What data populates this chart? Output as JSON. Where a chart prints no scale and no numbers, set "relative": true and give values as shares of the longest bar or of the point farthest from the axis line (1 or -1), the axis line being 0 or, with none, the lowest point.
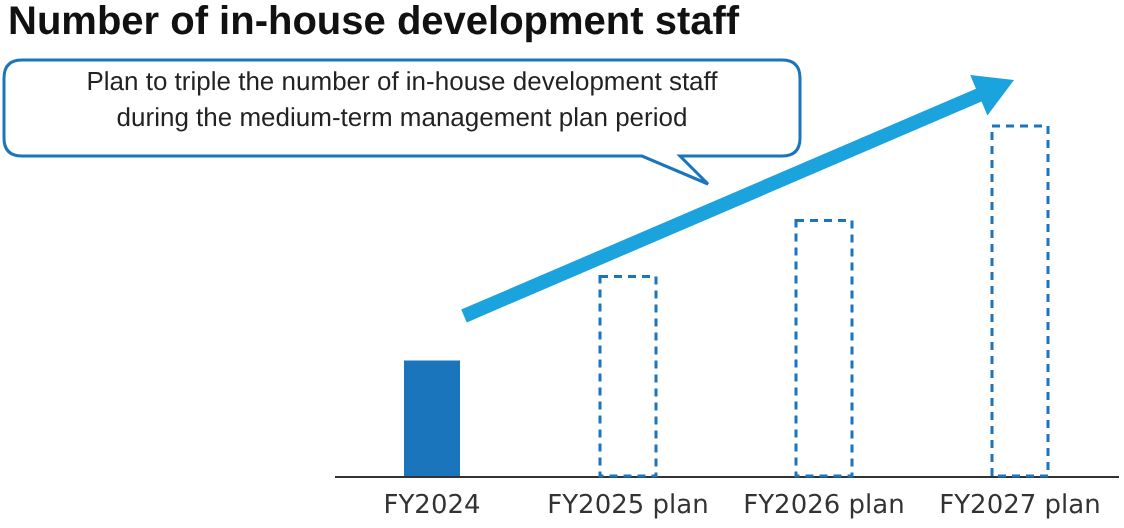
{
  "chart_data": {
    "type": "bar",
    "title": "Number of in-house development staff",
    "categories": [
      "FY2024",
      "FY2025 plan",
      "FY2026 plan",
      "FY2027 plan"
    ],
    "relative": true,
    "series": [
      {
        "color": "#1a75bc",
        "values": [
          0.33,
          null,
          null,
          null
        ]
      },
      {
        "color": "#1a75bc",
        "line_style": "dashed",
        "values": [
          null,
          0.57,
          0.73,
          1
        ]
      }
    ],
    "annotations": [
      "Plan to triple the number of in-house development staff\nduring the medium-term management plan period"
    ]
  }
}
